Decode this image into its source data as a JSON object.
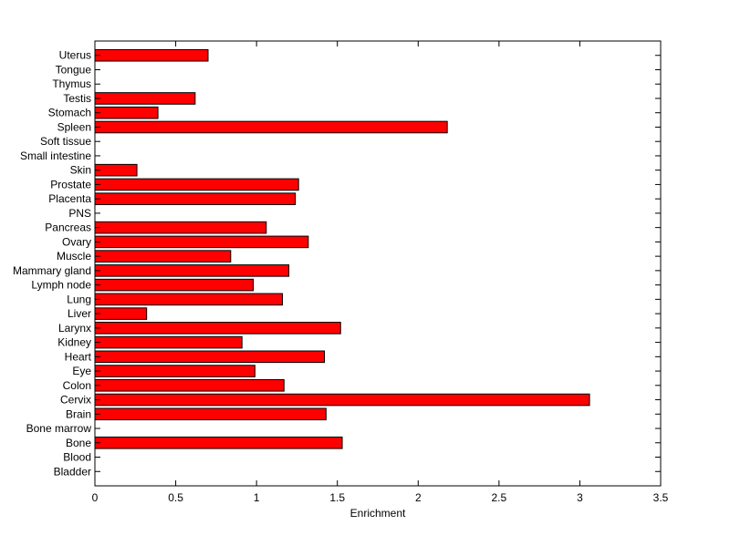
{
  "chart_data": {
    "type": "bar",
    "orientation": "horizontal",
    "title": "",
    "xlabel": "Enrichment",
    "ylabel": "",
    "xlim": [
      0,
      3.5
    ],
    "x_ticks": [
      0,
      0.5,
      1,
      1.5,
      2,
      2.5,
      3,
      3.5
    ],
    "x_tick_labels": [
      "0",
      "0.5",
      "1",
      "1.5",
      "2",
      "2.5",
      "3",
      "3.5"
    ],
    "grid": false,
    "bar_color": "#ff0000",
    "bar_edge_color": "#000000",
    "categories": [
      "Bladder",
      "Blood",
      "Bone",
      "Bone marrow",
      "Brain",
      "Cervix",
      "Colon",
      "Eye",
      "Heart",
      "Kidney",
      "Larynx",
      "Liver",
      "Lung",
      "Lymph node",
      "Mammary gland",
      "Muscle",
      "Ovary",
      "Pancreas",
      "PNS",
      "Placenta",
      "Prostate",
      "Skin",
      "Small intestine",
      "Soft tissue",
      "Spleen",
      "Stomach",
      "Testis",
      "Thymus",
      "Tongue",
      "Uterus"
    ],
    "values": [
      0,
      0,
      1.53,
      0,
      1.43,
      3.06,
      1.17,
      0.99,
      1.42,
      0.91,
      1.52,
      0.32,
      1.16,
      0.98,
      1.2,
      0.84,
      1.32,
      1.06,
      0,
      1.24,
      1.26,
      0.26,
      0,
      0,
      2.18,
      0.39,
      0.62,
      0,
      0,
      0.7
    ]
  }
}
